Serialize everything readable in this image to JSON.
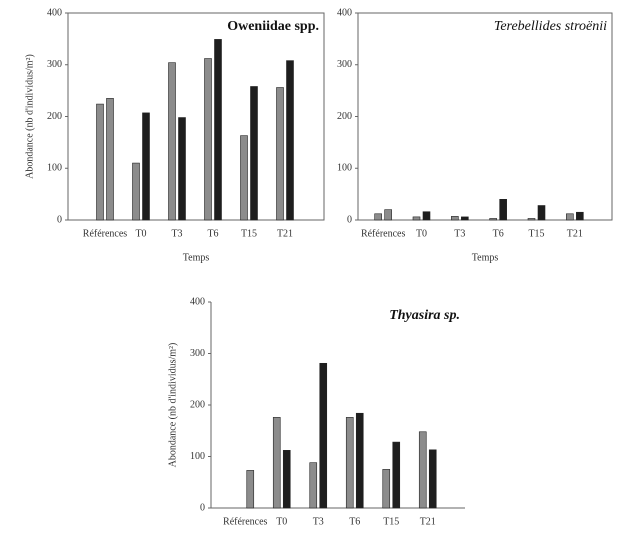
{
  "chart_data": [
    {
      "type": "bar",
      "title": "Oweniidae spp.",
      "title_style": "bold",
      "x_label": "Temps",
      "y_label": "Abondance (nb d'individus/m²)",
      "categories": [
        "Références",
        "T0",
        "T3",
        "T6",
        "T15",
        "T21"
      ],
      "series": [
        {
          "colors": [
            "#8c8c8c",
            "#8c8c8c",
            "#8c8c8c",
            "#8c8c8c",
            "#8c8c8c",
            "#8c8c8c"
          ],
          "values": [
            224,
            110,
            304,
            312,
            163,
            256
          ]
        },
        {
          "colors": [
            "#8c8c8c",
            "#1e1e1e",
            "#1e1e1e",
            "#1e1e1e",
            "#1e1e1e",
            "#1e1e1e"
          ],
          "values": [
            235,
            207,
            198,
            349,
            258,
            308
          ]
        }
      ],
      "ylim": [
        0,
        400
      ],
      "yticks": [
        0,
        100,
        200,
        300,
        400
      ]
    },
    {
      "type": "bar",
      "title": "Terebellides stroënii",
      "title_style": "italic",
      "x_label": "Temps",
      "categories": [
        "Références",
        "T0",
        "T3",
        "T6",
        "T15",
        "T21"
      ],
      "series": [
        {
          "colors": [
            "#8c8c8c",
            "#8c8c8c",
            "#8c8c8c",
            "#8c8c8c",
            "#8c8c8c",
            "#8c8c8c"
          ],
          "values": [
            12,
            6,
            7,
            3,
            3,
            12
          ]
        },
        {
          "colors": [
            "#8c8c8c",
            "#1e1e1e",
            "#1e1e1e",
            "#1e1e1e",
            "#1e1e1e",
            "#1e1e1e"
          ],
          "values": [
            20,
            16,
            6,
            40,
            28,
            15
          ]
        }
      ],
      "ylim": [
        0,
        400
      ],
      "yticks": [
        0,
        100,
        200,
        300,
        400
      ]
    },
    {
      "type": "bar",
      "title": "Thyasira sp.",
      "title_style": "bold italic",
      "y_label": "Abondance (nb d'individus/m²)",
      "categories": [
        "Références",
        "T0",
        "T3",
        "T6",
        "T15",
        "T21"
      ],
      "series": [
        {
          "colors": [
            "#8c8c8c",
            "#8c8c8c",
            "#8c8c8c",
            "#8c8c8c",
            "#8c8c8c",
            "#8c8c8c"
          ],
          "values": [
            0,
            176,
            88,
            176,
            75,
            148
          ]
        },
        {
          "colors": [
            "#8c8c8c",
            "#1e1e1e",
            "#1e1e1e",
            "#1e1e1e",
            "#1e1e1e",
            "#1e1e1e"
          ],
          "values": [
            73,
            112,
            281,
            184,
            128,
            113
          ]
        }
      ],
      "ylim": [
        0,
        400
      ],
      "yticks": [
        0,
        100,
        200,
        300,
        400
      ]
    }
  ]
}
